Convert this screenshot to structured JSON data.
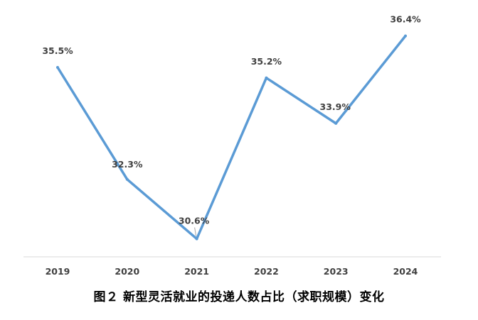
{
  "chart_data": {
    "type": "line",
    "categories": [
      "2019",
      "2020",
      "2021",
      "2022",
      "2023",
      "2024"
    ],
    "series": [
      {
        "values": [
          35.5,
          32.3,
          30.6,
          35.2,
          33.9,
          36.4
        ],
        "labels": [
          "35.5%",
          "32.3%",
          "30.6%",
          "35.2%",
          "33.9%",
          "36.4%"
        ],
        "color": "#5b9bd5"
      }
    ],
    "caption": "图２ 新型灵活就业的投递人数占比（求职规模）变化",
    "xlabel": "",
    "ylabel": "",
    "grid": false,
    "legend": "none",
    "axis_color": "#d9d9d9",
    "label_color": "#404040"
  }
}
